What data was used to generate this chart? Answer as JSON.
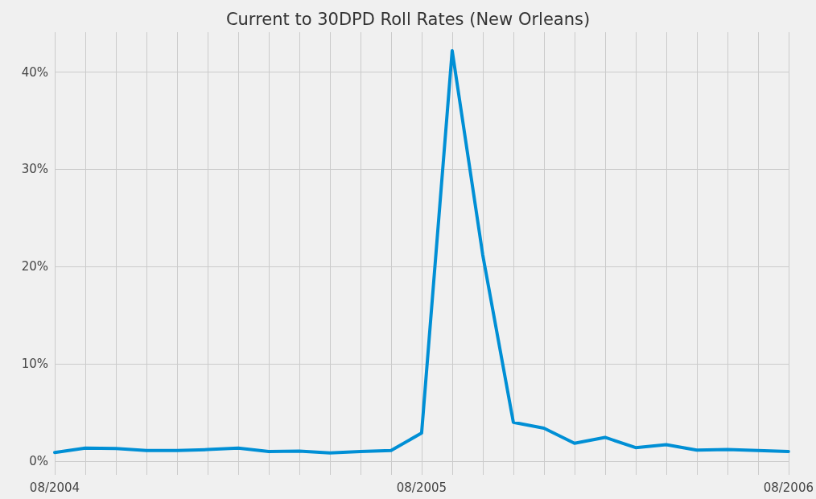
{
  "chart_data": {
    "type": "line",
    "title": "Current to 30DPD Roll Rates (New Orleans)",
    "categories": [
      "08/2004",
      null,
      null,
      null,
      null,
      null,
      null,
      null,
      null,
      null,
      null,
      null,
      "08/2005",
      null,
      null,
      null,
      null,
      null,
      null,
      null,
      null,
      null,
      null,
      null,
      "08/2006"
    ],
    "series": [
      {
        "color": "#008fd5",
        "values": [
          0.9,
          1.35,
          1.3,
          1.1,
          1.1,
          1.2,
          1.35,
          1.0,
          1.05,
          0.85,
          1.0,
          1.1,
          2.9,
          42.2,
          21.2,
          4.0,
          3.4,
          1.85,
          2.45,
          1.4,
          1.7,
          1.15,
          1.2,
          1.1,
          1.0
        ]
      }
    ],
    "ylim": [
      -1.4,
      44.1
    ],
    "yticks": [
      {
        "value": 0,
        "label": "0%"
      },
      {
        "value": 10,
        "label": "10%"
      },
      {
        "value": 20,
        "label": "20%"
      },
      {
        "value": 30,
        "label": "30%"
      },
      {
        "value": 40,
        "label": "40%"
      }
    ],
    "grid": true,
    "marker": "none",
    "line_style": "solid"
  }
}
